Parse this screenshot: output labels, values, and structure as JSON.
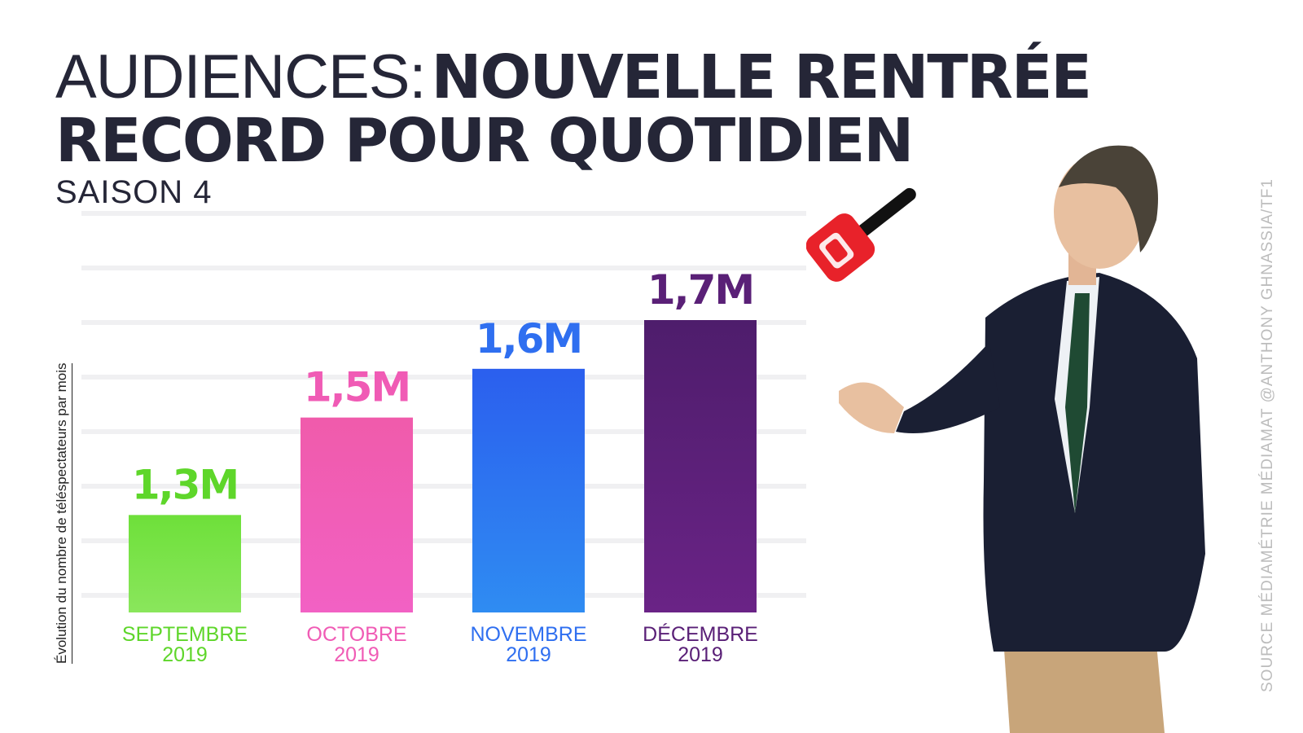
{
  "title": {
    "light": "AUDIENCES",
    "colon": ":",
    "bold_line1": "NOUVELLE RENTRÉE",
    "bold_line2": "RECORD POUR QUOTIDIEN"
  },
  "subtitle": "SAISON 4",
  "source": "SOURCE MÉDIAMÉTRIE MÉDIAMAT @ANTHONY GHNASSIA/TF1",
  "colors": {
    "text": "#252637",
    "september": "#5ed62a",
    "october": "#f05bb5",
    "november": "#2f6ff0",
    "december": "#5a2077"
  },
  "chart_data": {
    "type": "bar",
    "title": "AUDIENCES : NOUVELLE RENTRÉE RECORD POUR QUOTIDIEN",
    "subtitle": "SAISON 4",
    "ylabel": "Évolution du nombre de téléspectateurs par mois",
    "xlabel": "",
    "categories": [
      {
        "month": "SEPTEMBRE",
        "year": "2019"
      },
      {
        "month": "OCTOBRE",
        "year": "2019"
      },
      {
        "month": "NOVEMBRE",
        "year": "2019"
      },
      {
        "month": "DÉCEMBRE",
        "year": "2019"
      }
    ],
    "values": [
      1.3,
      1.5,
      1.6,
      1.7
    ],
    "value_labels": [
      "1,3M",
      "1,5M",
      "1,6M",
      "1,7M"
    ],
    "unit": "M",
    "ylim": [
      1.1,
      1.75
    ],
    "grid": true,
    "legend": "none"
  }
}
